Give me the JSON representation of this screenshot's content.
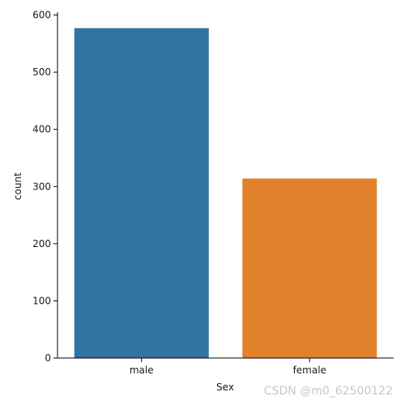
{
  "chart_data": {
    "type": "bar",
    "categories": [
      "male",
      "female"
    ],
    "values": [
      577,
      314
    ],
    "colors": [
      "#3274a1",
      "#e1812c"
    ],
    "xlabel": "Sex",
    "ylabel": "count",
    "ylim": [
      0,
      605
    ],
    "yticks": [
      0,
      100,
      200,
      300,
      400,
      500,
      600
    ],
    "grid": false,
    "legend": false
  },
  "watermark": {
    "text": "CSDN @m0_62500122"
  }
}
